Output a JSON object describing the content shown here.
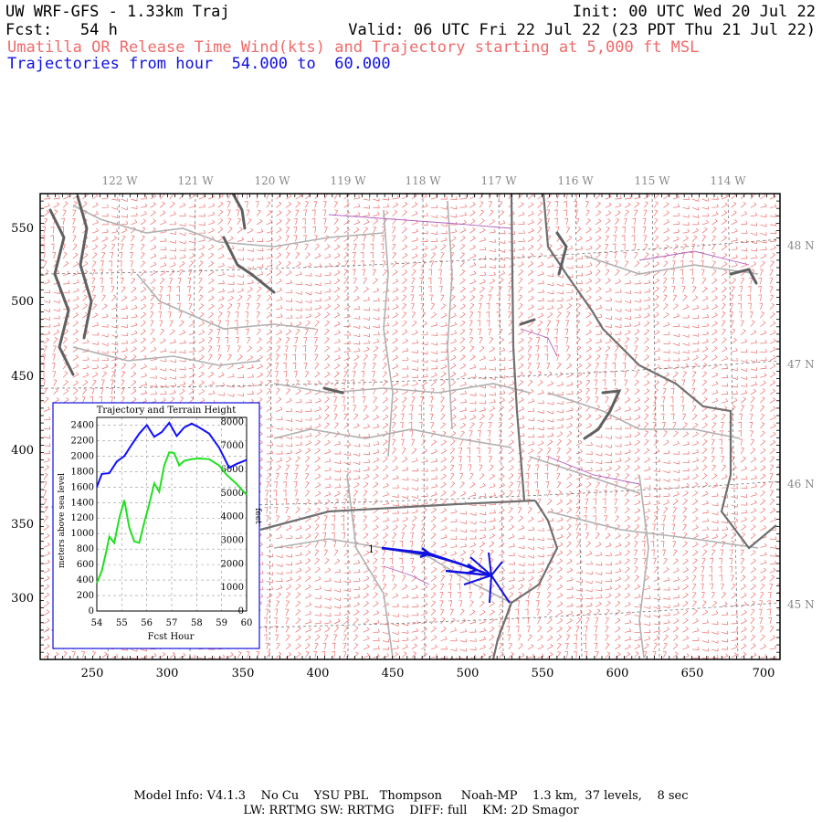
{
  "header": {
    "left1": "UW WRF-GFS - 1.33km Traj",
    "right1": "Init: 00 UTC Wed 20 Jul 22",
    "left2": "Fcst:   54 h",
    "right2": "Valid: 06 UTC Fri 22 Jul 22 (23 PDT Thu 21 Jul 22)",
    "line3": "Umatilla OR Release Time Wind(kts) and Trajectory starting at 5,000 ft MSL",
    "line4": "Trajectories from hour  54.000 to  60.000"
  },
  "map": {
    "lon_labels": [
      "122 W",
      "121 W",
      "120 W",
      "119 W",
      "118 W",
      "117 W",
      "116 W",
      "115 W",
      "114 W"
    ],
    "lat_labels": [
      "48 N",
      "47 N",
      "46 N",
      "45 N"
    ],
    "x_ticks": [
      "250",
      "300",
      "350",
      "400",
      "450",
      "500",
      "550",
      "600",
      "650",
      "700"
    ],
    "y_ticks": [
      "550",
      "500",
      "450",
      "400",
      "350",
      "300"
    ],
    "trajectory_label": "1",
    "colors": {
      "wind": "#f06a6a",
      "trajectory": "#1010e0",
      "boundary": "#a0a0a0",
      "coast": "#606060",
      "county": "#b060c0"
    }
  },
  "chart_data": {
    "type": "line",
    "title": "Trajectory and Terrain Height",
    "xlabel": "Fcst Hour",
    "ylabel": "meters above sea level",
    "ylabel_right": "feet",
    "xlim": [
      54,
      60
    ],
    "ylim": [
      0,
      2500
    ],
    "ylim_right": [
      0,
      8202
    ],
    "x_ticks": [
      "54",
      "55",
      "56",
      "57",
      "58",
      "59",
      "60"
    ],
    "y_ticks": [
      "0",
      "200",
      "400",
      "600",
      "800",
      "1000",
      "1200",
      "1400",
      "1600",
      "1800",
      "2000",
      "2200",
      "2400"
    ],
    "y_ticks_right": [
      "0",
      "1000",
      "2000",
      "3000",
      "4000",
      "5000",
      "6000",
      "7000",
      "8000"
    ],
    "series": [
      {
        "color": "#1010ff",
        "x": [
          54,
          54.2,
          54.5,
          54.8,
          55.1,
          55.4,
          55.7,
          56.0,
          56.3,
          56.6,
          56.9,
          57.2,
          57.5,
          57.8,
          58.1,
          58.5,
          58.9,
          59.3,
          59.6,
          60
        ],
        "y": [
          1600,
          1770,
          1780,
          1930,
          2000,
          2150,
          2290,
          2400,
          2250,
          2310,
          2430,
          2260,
          2370,
          2420,
          2370,
          2290,
          2110,
          1850,
          1900,
          1950
        ]
      },
      {
        "color": "#20e020",
        "x": [
          54,
          54.2,
          54.4,
          54.5,
          54.7,
          54.9,
          55.1,
          55.3,
          55.5,
          55.7,
          55.9,
          56.1,
          56.3,
          56.5,
          56.7,
          56.9,
          57.1,
          57.3,
          57.5,
          57.8,
          58.1,
          58.5,
          58.9,
          59.2,
          59.6,
          60
        ],
        "y": [
          360,
          520,
          800,
          960,
          880,
          1200,
          1430,
          1080,
          900,
          880,
          1140,
          1380,
          1650,
          1540,
          1880,
          2050,
          2040,
          1880,
          1940,
          1960,
          1970,
          1960,
          1880,
          1760,
          1640,
          1500
        ]
      }
    ]
  },
  "footer": {
    "line1": "Model Info: V4.1.3    No Cu    YSU PBL   Thompson     Noah-MP    1.3 km,  37 levels,    8 sec",
    "line2": "LW: RRTMG SW: RRTMG    DIFF: full    KM: 2D Smagor"
  }
}
